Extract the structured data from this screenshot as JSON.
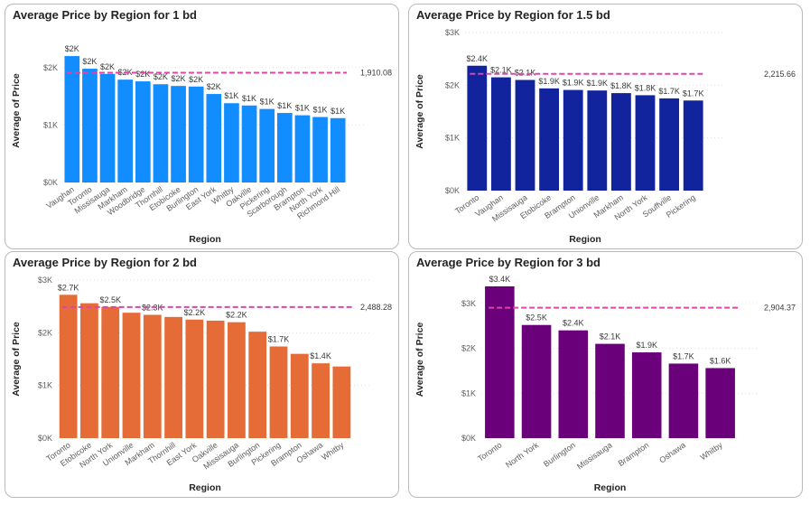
{
  "charts": [
    {
      "title": "Average Price by Region for 1 bd",
      "xlabel": "Region",
      "ylabel": "Average of Price",
      "color": "#118dff",
      "ref_color": "#e044a7",
      "yticks": [
        "$0K",
        "$1K",
        "$2K"
      ],
      "ylim": [
        0,
        2500
      ],
      "ref_value": 1910.08,
      "ref_label": "1,910.08",
      "chart_data": {
        "type": "bar",
        "categories": [
          "Vaughan",
          "Toronto",
          "Missisauga",
          "Markham",
          "Woodbridge",
          "Thornhill",
          "Etobicoke",
          "Burlington",
          "East York",
          "Whitby",
          "Oakville",
          "Pickering",
          "Scarborough",
          "Brampton",
          "North York",
          "Richmond Hill"
        ],
        "values": [
          2200,
          1980,
          1890,
          1790,
          1760,
          1710,
          1680,
          1670,
          1540,
          1380,
          1340,
          1280,
          1210,
          1170,
          1140,
          1120
        ],
        "data_labels": [
          "$2K",
          "$2K",
          "$2K",
          "$2K",
          "$2K",
          "$2K",
          "$2K",
          "$2K",
          "$2K",
          "$1K",
          "$1K",
          "$1K",
          "$1K",
          "$1K",
          "$1K",
          "$1K"
        ]
      }
    },
    {
      "title": "Average Price by Region for 1.5 bd",
      "xlabel": "Region",
      "ylabel": "Average of Price",
      "color": "#12239e",
      "ref_color": "#e044a7",
      "yticks": [
        "$0K",
        "$1K",
        "$2K",
        "$3K"
      ],
      "ylim": [
        0,
        3000
      ],
      "ref_value": 2215.66,
      "ref_label": "2,215.66",
      "chart_data": {
        "type": "bar",
        "categories": [
          "Toronto",
          "Vaughan",
          "Missisauga",
          "Etobicoke",
          "Brampton",
          "Unionville",
          "Markham",
          "North York",
          "Souffville",
          "Pickering"
        ],
        "values": [
          2370,
          2150,
          2100,
          1940,
          1910,
          1900,
          1850,
          1810,
          1750,
          1710
        ],
        "data_labels": [
          "$2.4K",
          "$2.1K",
          "$2.1K",
          "$1.9K",
          "$1.9K",
          "$1.9K",
          "$1.8K",
          "$1.8K",
          "$1.7K",
          "$1.7K"
        ]
      }
    },
    {
      "title": "Average Price by Region for 2 bd",
      "xlabel": "Region",
      "ylabel": "Average of Price",
      "color": "#e66c37",
      "ref_color": "#e044a7",
      "yticks": [
        "$0K",
        "$1K",
        "$2K",
        "$3K"
      ],
      "ylim": [
        0,
        3000
      ],
      "ref_value": 2488.28,
      "ref_label": "2,488.28",
      "chart_data": {
        "type": "bar",
        "categories": [
          "Toronto",
          "Etobicoke",
          "North York",
          "Unionville",
          "Markham",
          "Thornhill",
          "East York",
          "Oakville",
          "Missisauga",
          "Burlington",
          "Pickering",
          "Brampton",
          "Oshawa",
          "Whitby"
        ],
        "values": [
          2720,
          2560,
          2490,
          2380,
          2340,
          2300,
          2250,
          2230,
          2200,
          2020,
          1740,
          1600,
          1420,
          1360
        ],
        "data_labels": [
          "$2.7K",
          "",
          "$2.5K",
          "",
          "$2.3K",
          "",
          "$2.2K",
          "",
          "$2.2K",
          "",
          "$1.7K",
          "",
          "$1.4K",
          ""
        ]
      }
    },
    {
      "title": "Average Price by Region for 3 bd",
      "xlabel": "Region",
      "ylabel": "Average of Price",
      "color": "#6b007b",
      "ref_color": "#e044a7",
      "yticks": [
        "$0K",
        "$1K",
        "$2K",
        "$3K"
      ],
      "ylim": [
        0,
        3500
      ],
      "ref_value": 2904.37,
      "ref_label": "2,904.37",
      "chart_data": {
        "type": "bar",
        "categories": [
          "Toronto",
          "North York",
          "Burlington",
          "Missisauga",
          "Brampton",
          "Oshawa",
          "Whitby"
        ],
        "values": [
          3380,
          2520,
          2400,
          2100,
          1910,
          1660,
          1560
        ],
        "data_labels": [
          "$3.4K",
          "$2.5K",
          "$2.4K",
          "$2.1K",
          "$1.9K",
          "$1.7K",
          "$1.6K"
        ]
      }
    }
  ]
}
